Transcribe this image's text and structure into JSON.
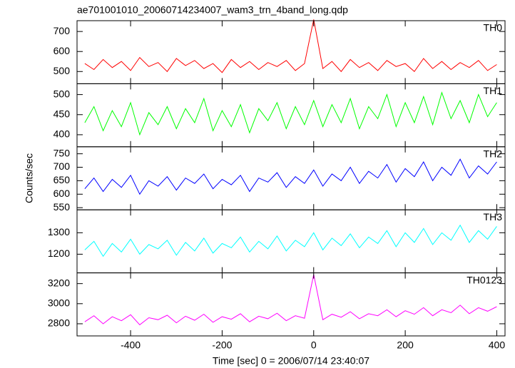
{
  "chart_data": [
    {
      "type": "line",
      "title": "ae701001010_20060714234007_wam3_trn_4band_long.qdp",
      "label": "TH0",
      "color": "#ff0000",
      "ylim": [
        439,
        754
      ],
      "yticks": [
        500,
        600,
        700
      ],
      "values": [
        540,
        510,
        560,
        520,
        550,
        505,
        570,
        525,
        545,
        500,
        565,
        530,
        555,
        515,
        540,
        495,
        560,
        520,
        550,
        510,
        545,
        525,
        555,
        505,
        540,
        760,
        515,
        550,
        500,
        560,
        520,
        545,
        505,
        555,
        525,
        540,
        500,
        565,
        515,
        550,
        510,
        545,
        520,
        555,
        505,
        535
      ]
    },
    {
      "type": "line",
      "label": "TH1",
      "color": "#00ff00",
      "ylim": [
        370,
        527
      ],
      "yticks": [
        400,
        450,
        500
      ],
      "values": [
        430,
        470,
        410,
        460,
        420,
        480,
        400,
        455,
        425,
        470,
        415,
        465,
        430,
        490,
        410,
        460,
        420,
        475,
        405,
        465,
        435,
        480,
        415,
        470,
        425,
        485,
        420,
        475,
        430,
        490,
        415,
        470,
        440,
        500,
        420,
        480,
        430,
        495,
        425,
        505,
        440,
        485,
        430,
        500,
        445,
        480
      ]
    },
    {
      "type": "line",
      "label": "TH2",
      "color": "#0000ff",
      "y_label": "Counts/sec",
      "ylim": [
        542,
        776
      ],
      "yticks": [
        550,
        600,
        650,
        700,
        750
      ],
      "values": [
        620,
        660,
        610,
        655,
        625,
        670,
        600,
        650,
        630,
        665,
        615,
        660,
        640,
        675,
        620,
        655,
        635,
        670,
        610,
        660,
        645,
        680,
        625,
        665,
        640,
        690,
        630,
        675,
        650,
        700,
        640,
        685,
        660,
        710,
        645,
        695,
        665,
        720,
        650,
        700,
        670,
        730,
        660,
        705,
        675,
        720
      ]
    },
    {
      "type": "line",
      "label": "TH3",
      "color": "#00ffff",
      "ylim": [
        1113,
        1407
      ],
      "yticks": [
        1200,
        1300
      ],
      "values": [
        1220,
        1260,
        1190,
        1250,
        1210,
        1270,
        1200,
        1245,
        1225,
        1265,
        1195,
        1255,
        1215,
        1275,
        1205,
        1250,
        1230,
        1280,
        1210,
        1260,
        1225,
        1285,
        1215,
        1265,
        1235,
        1300,
        1220,
        1275,
        1240,
        1295,
        1230,
        1280,
        1250,
        1310,
        1235,
        1300,
        1255,
        1320,
        1245,
        1300,
        1265,
        1335,
        1255,
        1310,
        1270,
        1330
      ]
    },
    {
      "type": "line",
      "label": "TH0123",
      "color": "#ff00ff",
      "x_label": "Time [sec] 0 = 2006/07/14 23:40:07",
      "xlim": [
        -517,
        418
      ],
      "xticks": [
        -400,
        -200,
        0,
        200,
        400
      ],
      "x": [
        -500,
        -480,
        -460,
        -440,
        -420,
        -400,
        -380,
        -360,
        -340,
        -320,
        -300,
        -280,
        -260,
        -240,
        -220,
        -200,
        -180,
        -160,
        -140,
        -120,
        -100,
        -80,
        -60,
        -40,
        -20,
        0,
        20,
        40,
        60,
        80,
        100,
        120,
        140,
        160,
        180,
        200,
        220,
        240,
        260,
        280,
        300,
        320,
        340,
        360,
        380,
        400
      ],
      "ylim": [
        2679,
        3307
      ],
      "yticks": [
        2800,
        3000,
        3200
      ],
      "values": [
        2820,
        2880,
        2800,
        2870,
        2830,
        2890,
        2790,
        2860,
        2840,
        2885,
        2810,
        2875,
        2835,
        2895,
        2815,
        2870,
        2845,
        2900,
        2820,
        2875,
        2850,
        2905,
        2830,
        2880,
        2855,
        3290,
        2840,
        2895,
        2865,
        2920,
        2850,
        2900,
        2880,
        2940,
        2870,
        2930,
        2895,
        2960,
        2880,
        2940,
        2910,
        2985,
        2900,
        2960,
        2925,
        2970
      ]
    }
  ]
}
